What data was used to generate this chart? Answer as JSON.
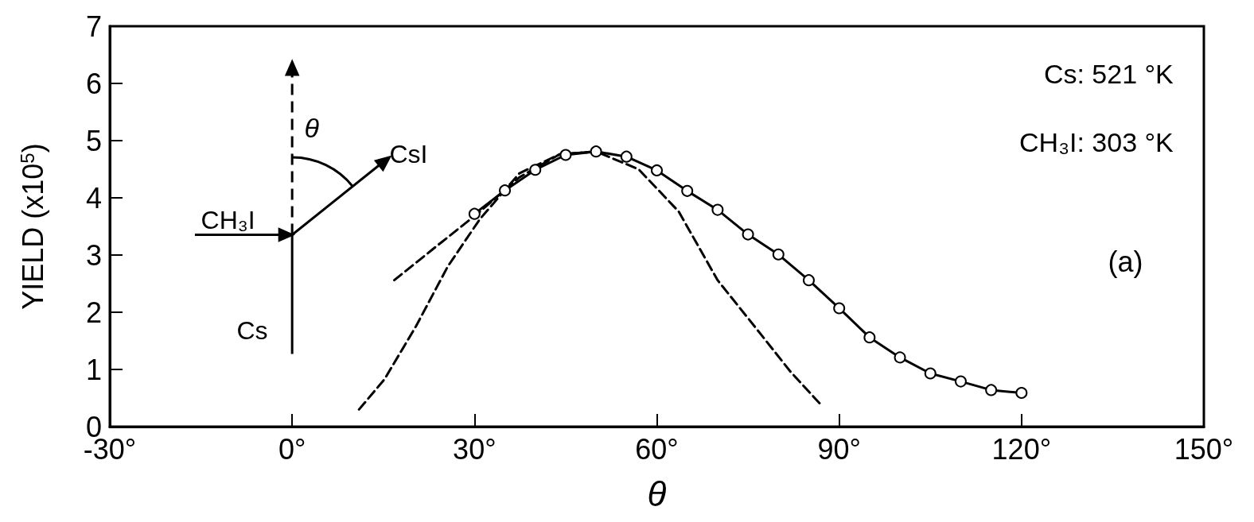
{
  "chart_data": {
    "type": "line",
    "xlabel": "θ",
    "ylabel": "YIELD (x10$^{5}$)",
    "xlim": [
      -30,
      150
    ],
    "xticks": [
      {
        "value": -30,
        "label": "-30°"
      },
      {
        "value": 0,
        "label": "0°"
      },
      {
        "value": 30,
        "label": "30°"
      },
      {
        "value": 60,
        "label": "60°"
      },
      {
        "value": 90,
        "label": "90°"
      },
      {
        "value": 120,
        "label": "120°"
      },
      {
        "value": 150,
        "label": "150°"
      }
    ],
    "ylim": [
      0,
      7
    ],
    "yticks": [
      0,
      1,
      2,
      3,
      4,
      5,
      6,
      7
    ],
    "grid": false,
    "series": [
      {
        "color": "#000000",
        "marker": "circle",
        "line_style": "solid",
        "x": [
          30,
          35,
          40,
          45,
          50,
          55,
          60,
          65,
          70,
          75,
          80,
          85,
          90,
          95,
          100,
          105,
          110,
          115,
          120
        ],
        "values": [
          3.72,
          4.13,
          4.49,
          4.75,
          4.81,
          4.72,
          4.48,
          4.12,
          3.79,
          3.36,
          3.01,
          2.56,
          2.07,
          1.56,
          1.21,
          0.93,
          0.79,
          0.64,
          0.59
        ]
      },
      {
        "color": "#000000",
        "marker": "none",
        "line_style": "dashed",
        "x": [
          16.8,
          23,
          30.9,
          37.4,
          44,
          50
        ],
        "values": [
          2.56,
          3.09,
          3.76,
          4.36,
          4.76,
          4.81
        ]
      },
      {
        "color": "#000000",
        "marker": "none",
        "line_style": "dashed",
        "x": [
          11,
          15.2,
          20.4,
          25.6,
          30.9,
          37.4,
          44,
          50,
          57,
          63.6,
          70,
          77,
          82,
          87.2
        ],
        "values": [
          0.3,
          0.83,
          1.76,
          2.8,
          3.63,
          4.43,
          4.76,
          4.81,
          4.5,
          3.76,
          2.56,
          1.63,
          0.96,
          0.36
        ]
      }
    ],
    "annotations": [
      "Cs: 521 °K",
      "CH₃I: 303 °K",
      "(a)",
      "CH₃I",
      "CsI",
      "Cs",
      "θ"
    ]
  }
}
